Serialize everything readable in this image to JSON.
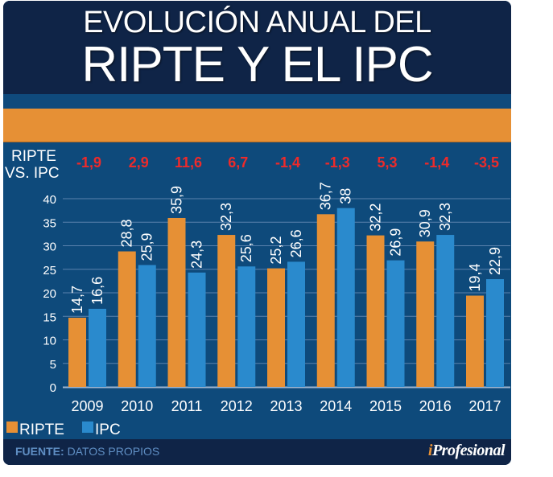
{
  "header": {
    "title_line1": "EVOLUCIÓN ANUAL DEL",
    "title_line2": "RIPTE Y EL IPC"
  },
  "diff_row": {
    "label_line1": "RIPTE",
    "label_line2": "VS. IPC",
    "values": [
      "-1,9",
      "2,9",
      "11,6",
      "6,7",
      "-1,4",
      "-1,3",
      "5,3",
      "-1,4",
      "-3,5"
    ]
  },
  "legend": [
    {
      "name": "RIPTE",
      "color": "#e69035"
    },
    {
      "name": "IPC",
      "color": "#2a8acd"
    }
  ],
  "footer": {
    "source_label": "FUENTE:",
    "source_value": "DATOS PROPIOS",
    "brand_i": "i",
    "brand_rest": "Profesional"
  },
  "colors": {
    "ripte": "#e69035",
    "ipc": "#2a8acd",
    "diff_text": "#ee2a2a",
    "background": "#0e4a7b",
    "header": "#0f2447"
  },
  "chart_data": {
    "type": "bar",
    "title": "EVOLUCIÓN ANUAL DEL RIPTE Y EL IPC",
    "xlabel": "",
    "ylabel": "",
    "categories": [
      "2009",
      "2010",
      "2011",
      "2012",
      "2013",
      "2014",
      "2015",
      "2016",
      "2017"
    ],
    "series": [
      {
        "name": "RIPTE",
        "values": [
          14.7,
          28.8,
          35.9,
          32.3,
          25.2,
          36.7,
          32.2,
          30.9,
          19.4
        ],
        "labels": [
          "14,7",
          "28,8",
          "35,9",
          "32,3",
          "25,2",
          "36,7",
          "32,2",
          "30,9",
          "19,4"
        ]
      },
      {
        "name": "IPC",
        "values": [
          16.6,
          25.9,
          24.3,
          25.6,
          26.6,
          38,
          26.9,
          32.3,
          22.9
        ],
        "labels": [
          "16,6",
          "25,9",
          "24,3",
          "25,6",
          "26,6",
          "38",
          "26,9",
          "32,3",
          "22,9"
        ]
      }
    ],
    "yticks": [
      0,
      5,
      10,
      15,
      20,
      25,
      30,
      35,
      40
    ],
    "ylim": [
      0,
      40
    ],
    "grid": true,
    "legend_position": "bottom-left",
    "annotations_row_label": "RIPTE VS. IPC",
    "annotations": [
      "-1,9",
      "2,9",
      "11,6",
      "6,7",
      "-1,4",
      "-1,3",
      "5,3",
      "-1,4",
      "-3,5"
    ]
  }
}
